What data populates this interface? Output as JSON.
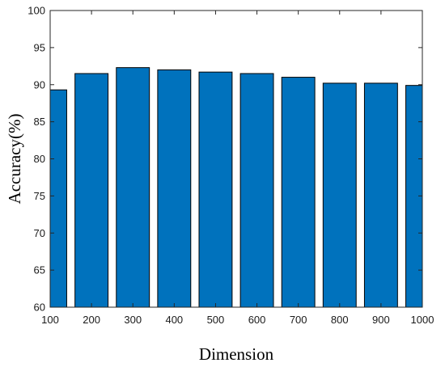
{
  "chart_data": {
    "type": "bar",
    "categories": [
      "100",
      "200",
      "300",
      "400",
      "500",
      "600",
      "700",
      "800",
      "900",
      "1000"
    ],
    "x": [
      100,
      200,
      300,
      400,
      500,
      600,
      700,
      800,
      900,
      1000
    ],
    "values": [
      89.3,
      91.5,
      92.3,
      92.0,
      91.7,
      91.5,
      91.0,
      90.2,
      90.2,
      89.9
    ],
    "title": "",
    "xlabel": "Dimension",
    "ylabel": "Accuracy(%)",
    "ylim": [
      60,
      100
    ],
    "xlim": [
      100,
      1000
    ],
    "yticks": [
      "60",
      "65",
      "70",
      "75",
      "80",
      "85",
      "90",
      "95",
      "100"
    ],
    "grid": false,
    "legend": "none",
    "bar_color": "#0072bd"
  }
}
